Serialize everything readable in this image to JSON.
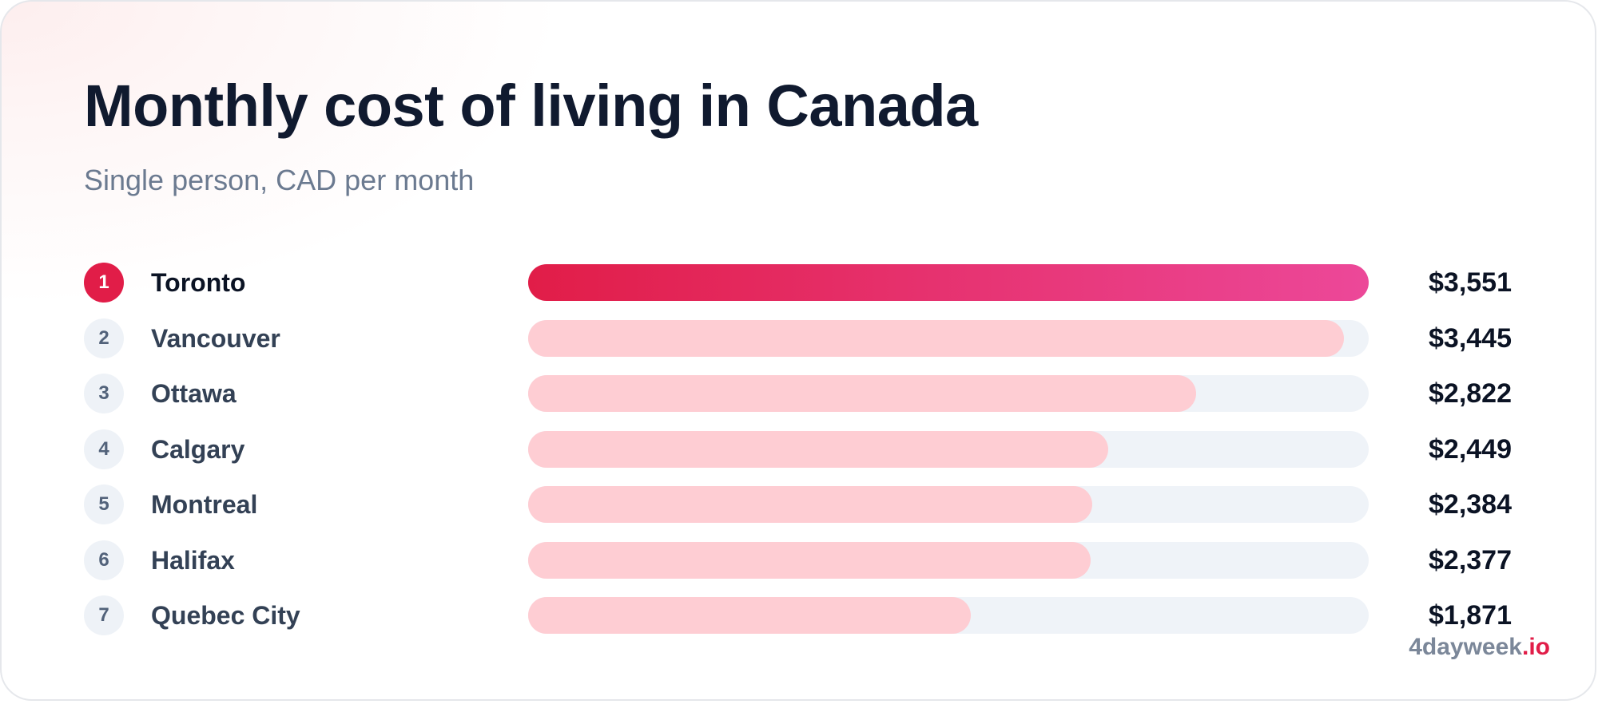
{
  "chart_data": {
    "type": "bar",
    "orientation": "horizontal",
    "title": "Monthly cost of living in Canada",
    "subtitle": "Single person, CAD per month",
    "categories": [
      "Toronto",
      "Vancouver",
      "Ottawa",
      "Calgary",
      "Montreal",
      "Halifax",
      "Quebec City"
    ],
    "ranks": [
      "1",
      "2",
      "3",
      "4",
      "5",
      "6",
      "7"
    ],
    "values": [
      3551,
      3445,
      2822,
      2449,
      2384,
      2377,
      1871
    ],
    "value_labels": [
      "$3,551",
      "$3,445",
      "$2,822",
      "$2,449",
      "$2,384",
      "$2,377",
      "$1,871"
    ],
    "xlim": [
      0,
      3551
    ],
    "grid": false,
    "highlight_color": "#e11d48",
    "highlight_gradient_end": "#ec4899",
    "bar_color": "#fecdd3",
    "track_color": "#eff3f8"
  },
  "brand": {
    "name": "4dayweek",
    "tld": ".io"
  }
}
